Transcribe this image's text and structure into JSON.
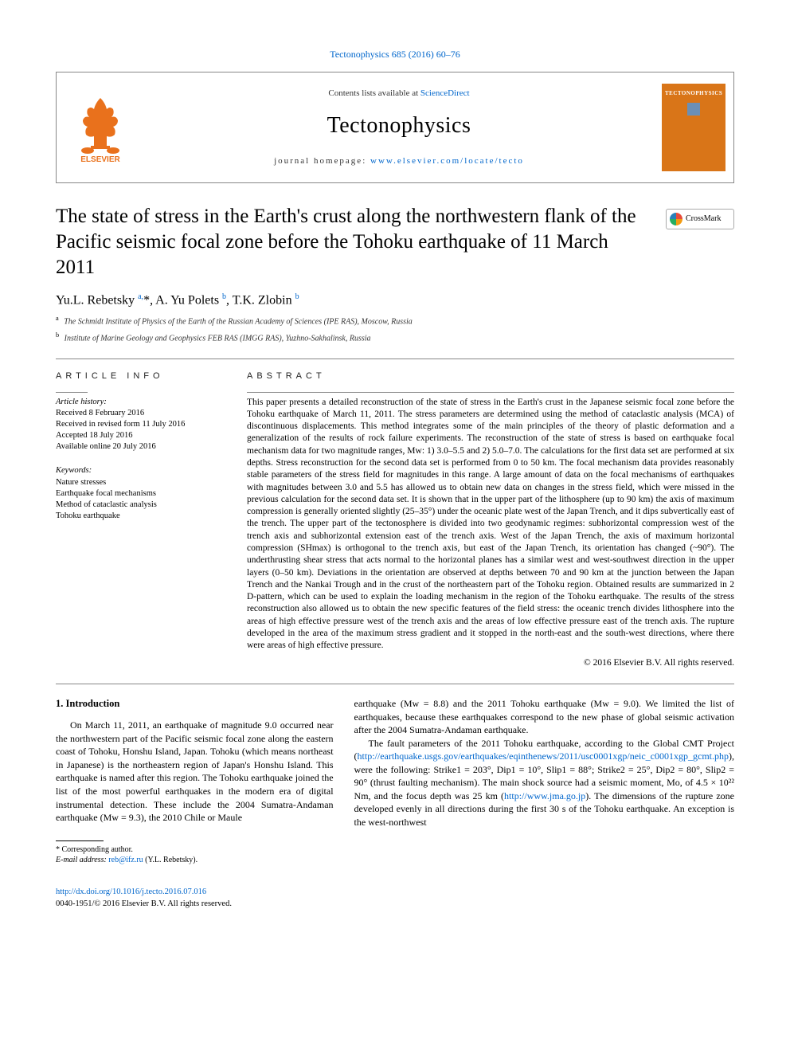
{
  "header": {
    "citation": "Tectonophysics 685 (2016) 60–76",
    "contents_prefix": "Contents lists available at ",
    "contents_link": "ScienceDirect",
    "journal_name": "Tectonophysics",
    "homepage_prefix": "journal homepage: ",
    "homepage_link": "www.elsevier.com/locate/tecto",
    "cover_title": "TECTONOPHYSICS",
    "crossmark_label": "CrossMark"
  },
  "article": {
    "title": "The state of stress in the Earth's crust along the northwestern flank of the Pacific seismic focal zone before the Tohoku earthquake of 11 March 2011",
    "authors_html": "Yu.L. Rebetsky <sup>a,</sup>*, A. Yu Polets <sup>b</sup>, T.K. Zlobin <sup>b</sup>",
    "affiliations": [
      {
        "sup": "a",
        "text": "The Schmidt Institute of Physics of the Earth of the Russian Academy of Sciences (IPE RAS), Moscow, Russia"
      },
      {
        "sup": "b",
        "text": "Institute of Marine Geology and Geophysics FEB RAS (IMGG RAS), Yuzhno-Sakhalinsk, Russia"
      }
    ]
  },
  "info": {
    "heading": "ARTICLE INFO",
    "history_label": "Article history:",
    "history": [
      "Received 8 February 2016",
      "Received in revised form 11 July 2016",
      "Accepted 18 July 2016",
      "Available online 20 July 2016"
    ],
    "keywords_label": "Keywords:",
    "keywords": [
      "Nature stresses",
      "Earthquake focal mechanisms",
      "Method of cataclastic analysis",
      "Tohoku earthquake"
    ]
  },
  "abstract": {
    "heading": "ABSTRACT",
    "text": "This paper presents a detailed reconstruction of the state of stress in the Earth's crust in the Japanese seismic focal zone before the Tohoku earthquake of March 11, 2011. The stress parameters are determined using the method of cataclastic analysis (MCA) of discontinuous displacements. This method integrates some of the main principles of the theory of plastic deformation and a generalization of the results of rock failure experiments. The reconstruction of the state of stress is based on earthquake focal mechanism data for two magnitude ranges, Mw: 1) 3.0–5.5 and 2) 5.0–7.0. The calculations for the first data set are performed at six depths. Stress reconstruction for the second data set is performed from 0 to 50 km. The focal mechanism data provides reasonably stable parameters of the stress field for magnitudes in this range. A large amount of data on the focal mechanisms of earthquakes with magnitudes between 3.0 and 5.5 has allowed us to obtain new data on changes in the stress field, which were missed in the previous calculation for the second data set. It is shown that in the upper part of the lithosphere (up to 90 km) the axis of maximum compression is generally oriented slightly (25–35°) under the oceanic plate west of the Japan Trench, and it dips subvertically east of the trench. The upper part of the tectonosphere is divided into two geodynamic regimes: subhorizontal compression west of the trench axis and subhorizontal extension east of the trench axis. West of the Japan Trench, the axis of maximum horizontal compression (SHmax) is orthogonal to the trench axis, but east of the Japan Trench, its orientation has changed (~90°). The underthrusting shear stress that acts normal to the horizontal planes has a similar west and west-southwest direction in the upper layers (0–50 km). Deviations in the orientation are observed at depths between 70 and 90 km at the junction between the Japan Trench and the Nankai Trough and in the crust of the northeastern part of the Tohoku region. Obtained results are summarized in 2 D-pattern, which can be used to explain the loading mechanism in the region of the Tohoku earthquake. The results of the stress reconstruction also allowed us to obtain the new specific features of the field stress: the oceanic trench divides lithosphere into the areas of high effective pressure west of the trench axis and the areas of low effective pressure east of the trench axis. The rupture developed in the area of the maximum stress gradient and it stopped in the north-east and the south-west directions, where there were areas of high effective pressure.",
    "copyright": "© 2016 Elsevier B.V. All rights reserved."
  },
  "body": {
    "intro_heading": "1. Introduction",
    "left_para": "On March 11, 2011, an earthquake of magnitude 9.0 occurred near the northwestern part of the Pacific seismic focal zone along the eastern coast of Tohoku, Honshu Island, Japan. Tohoku (which means northeast in Japanese) is the northeastern region of Japan's Honshu Island. This earthquake is named after this region. The Tohoku earthquake joined the list of the most powerful earthquakes in the modern era of digital instrumental detection. These include the 2004 Sumatra-Andaman earthquake (Mw = 9.3), the 2010 Chile or Maule",
    "right_para1": "earthquake (Mw = 8.8) and the 2011 Tohoku earthquake (Mw = 9.0). We limited the list of earthquakes, because these earthquakes correspond to the new phase of global seismic activation after the 2004 Sumatra-Andaman earthquake.",
    "right_para2_prefix": "The fault parameters of the 2011 Tohoku earthquake, according to the Global CMT Project (",
    "right_link1": "http://earthquake.usgs.gov/earthquakes/eqinthenews/2011/usc0001xgp/neic_c0001xgp_gcmt.php",
    "right_para2_mid": "), were the following: Strike1 = 203°, Dip1 = 10°, Slip1 = 88°; Strike2 = 25°, Dip2 = 80°, Slip2 = 90° (thrust faulting mechanism). The main shock source had a seismic moment, Mo, of 4.5 × 10²² Nm, and the focus depth was 25 km (",
    "right_link2": "http://www.jma.go.jp",
    "right_para2_suffix": "). The dimensions of the rupture zone developed evenly in all directions during the first 30 s of the Tohoku earthquake. An exception is the west-northwest"
  },
  "footer": {
    "corr_label": "* Corresponding author.",
    "email_label": "E-mail address: ",
    "email": "reb@ifz.ru",
    "email_suffix": " (Y.L. Rebetsky).",
    "doi_link": "http://dx.doi.org/10.1016/j.tecto.2016.07.016",
    "issn_line": "0040-1951/© 2016 Elsevier B.V. All rights reserved."
  },
  "colors": {
    "link": "#0066cc",
    "elsevier_orange": "#e9711c",
    "cover_orange": "#d97518",
    "rule": "#888888"
  }
}
